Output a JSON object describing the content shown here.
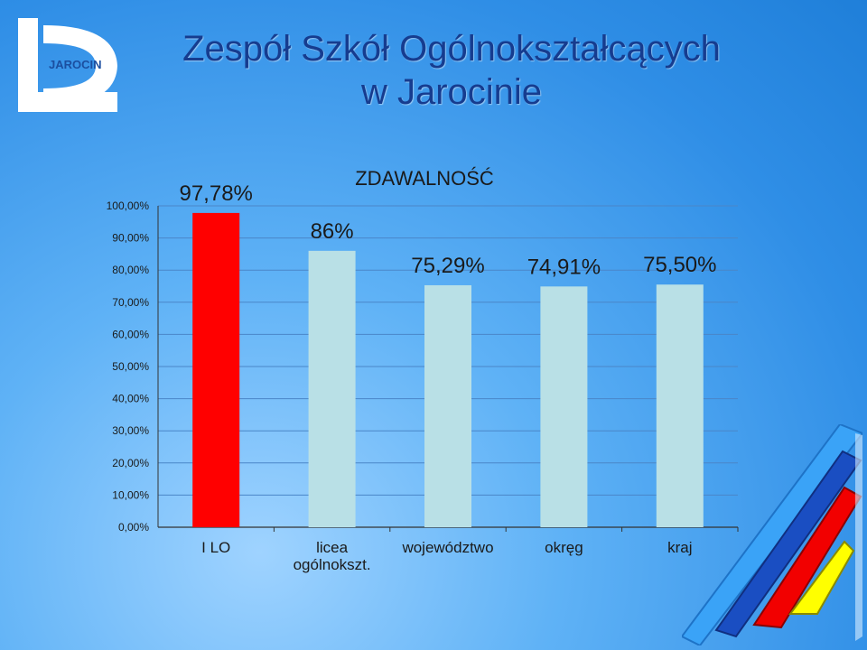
{
  "header": {
    "title_line1": "Zespół Szkół Ogólnokształcących",
    "title_line2": "w Jarocinie"
  },
  "logo": {
    "text": "JAROCIN"
  },
  "chart_data": {
    "type": "bar",
    "title": "ZDAWALNOŚĆ",
    "categories": [
      "I LO",
      "licea ogólnokszt.",
      "województwo",
      "okręg",
      "kraj"
    ],
    "category_lines": [
      [
        "I LO"
      ],
      [
        "licea",
        "ogólnokszt."
      ],
      [
        "województwo"
      ],
      [
        "okręg"
      ],
      [
        "kraj"
      ]
    ],
    "values": [
      97.78,
      86,
      75.29,
      74.91,
      75.5
    ],
    "data_labels": [
      "97,78%",
      "86%",
      "75,29%",
      "74,91%",
      "75,50%"
    ],
    "bar_colors": [
      "#ff0000",
      "#b9e0e6",
      "#b9e0e6",
      "#b9e0e6",
      "#b9e0e6"
    ],
    "ylim": [
      0,
      100
    ],
    "yticks": [
      "0,00%",
      "10,00%",
      "20,00%",
      "30,00%",
      "40,00%",
      "50,00%",
      "60,00%",
      "70,00%",
      "80,00%",
      "90,00%",
      "100,00%"
    ],
    "grid": true,
    "xlabel": "",
    "ylabel": ""
  },
  "colors": {
    "title": "#163c8f",
    "highlight_bar": "#ff0000",
    "other_bars": "#b9e0e6"
  }
}
